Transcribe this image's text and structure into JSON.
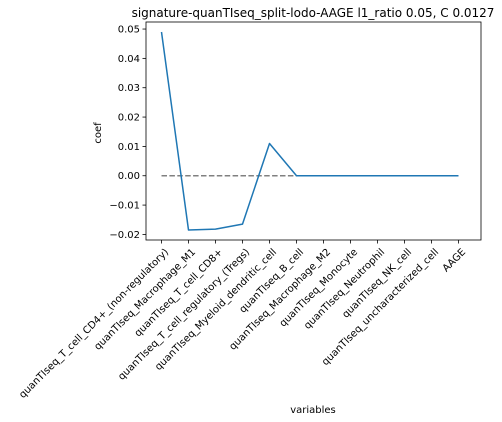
{
  "chart_data": {
    "type": "line",
    "title": "signature-quanTIseq_split-lodo-AAGE l1_ratio 0.05, C 0.0127",
    "xlabel": "variables",
    "ylabel": "coef",
    "categories": [
      "quanTIseq_T_cell_CD4+_(non-regulatory)",
      "quanTIseq_Macrophage_M1",
      "quanTIseq_T_cell_CD8+",
      "quanTIseq_T_cell_regulatory_(Tregs)",
      "quanTIseq_Myeloid_dendritic_cell",
      "quanTIseq_B_cell",
      "quanTIseq_Macrophage_M2",
      "quanTIseq_Monocyte",
      "quanTIseq_Neutrophil",
      "quanTIseq_NK_cell",
      "quanTIseq_uncharacterized_cell",
      "AAGE"
    ],
    "series": [
      {
        "values": [
          0.049,
          -0.0185,
          -0.0182,
          -0.0165,
          0.011,
          0,
          0,
          0,
          0,
          0,
          0,
          0
        ],
        "color": "#1f77b4"
      }
    ],
    "reference_line": {
      "y": 0,
      "style": "dashed",
      "color": "#808080"
    },
    "ylim": [
      -0.0219,
      0.0524
    ],
    "yticks": [
      -0.02,
      -0.01,
      0.0,
      0.01,
      0.02,
      0.03,
      0.04,
      0.05
    ],
    "ytick_labels": [
      "−0.02",
      "−0.01",
      "0.00",
      "0.01",
      "0.02",
      "0.03",
      "0.04",
      "0.05"
    ],
    "grid": false,
    "legend": false
  }
}
